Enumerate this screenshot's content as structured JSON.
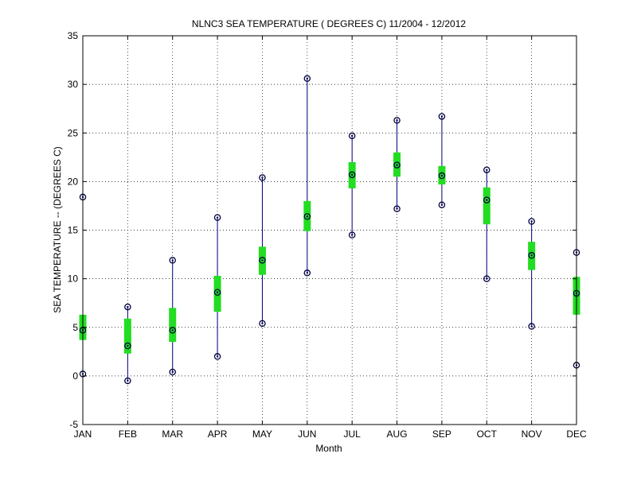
{
  "chart_data": {
    "type": "box",
    "title": "NLNC3  SEA TEMPERATURE ( DEGREES C) 11/2004 - 12/2012",
    "xlabel": "Month",
    "ylabel": "SEA TEMPERATURE -- (DEGREES C)",
    "ylim": [
      -5,
      35
    ],
    "yticks": [
      -5,
      0,
      5,
      10,
      15,
      20,
      25,
      30,
      35
    ],
    "grid": true,
    "categories": [
      "JAN",
      "FEB",
      "MAR",
      "APR",
      "MAY",
      "JUN",
      "JUL",
      "AUG",
      "SEP",
      "OCT",
      "NOV",
      "DEC"
    ],
    "series": [
      {
        "min": [
          0.2,
          -0.5,
          0.4,
          2.0,
          5.4,
          10.6,
          14.5,
          17.2,
          17.6,
          10.0,
          5.1,
          1.1
        ],
        "q1": [
          3.7,
          2.3,
          3.5,
          6.6,
          10.4,
          14.9,
          19.3,
          20.5,
          19.7,
          15.6,
          10.9,
          6.3
        ],
        "median": [
          4.7,
          3.1,
          4.7,
          8.6,
          11.9,
          16.4,
          20.7,
          21.7,
          20.6,
          18.1,
          12.4,
          8.5
        ],
        "q3": [
          6.3,
          5.9,
          7.0,
          10.3,
          13.3,
          18.0,
          22.0,
          23.0,
          21.6,
          19.4,
          13.8,
          10.2
        ],
        "max": [
          18.4,
          7.1,
          11.9,
          16.3,
          20.4,
          30.6,
          24.7,
          26.3,
          26.7,
          21.2,
          15.9,
          12.7
        ]
      }
    ],
    "colors": {
      "whisker": "#000080",
      "box": "#22dd22",
      "marker": "#000040",
      "grid": "#000000",
      "axis": "#000000"
    }
  }
}
